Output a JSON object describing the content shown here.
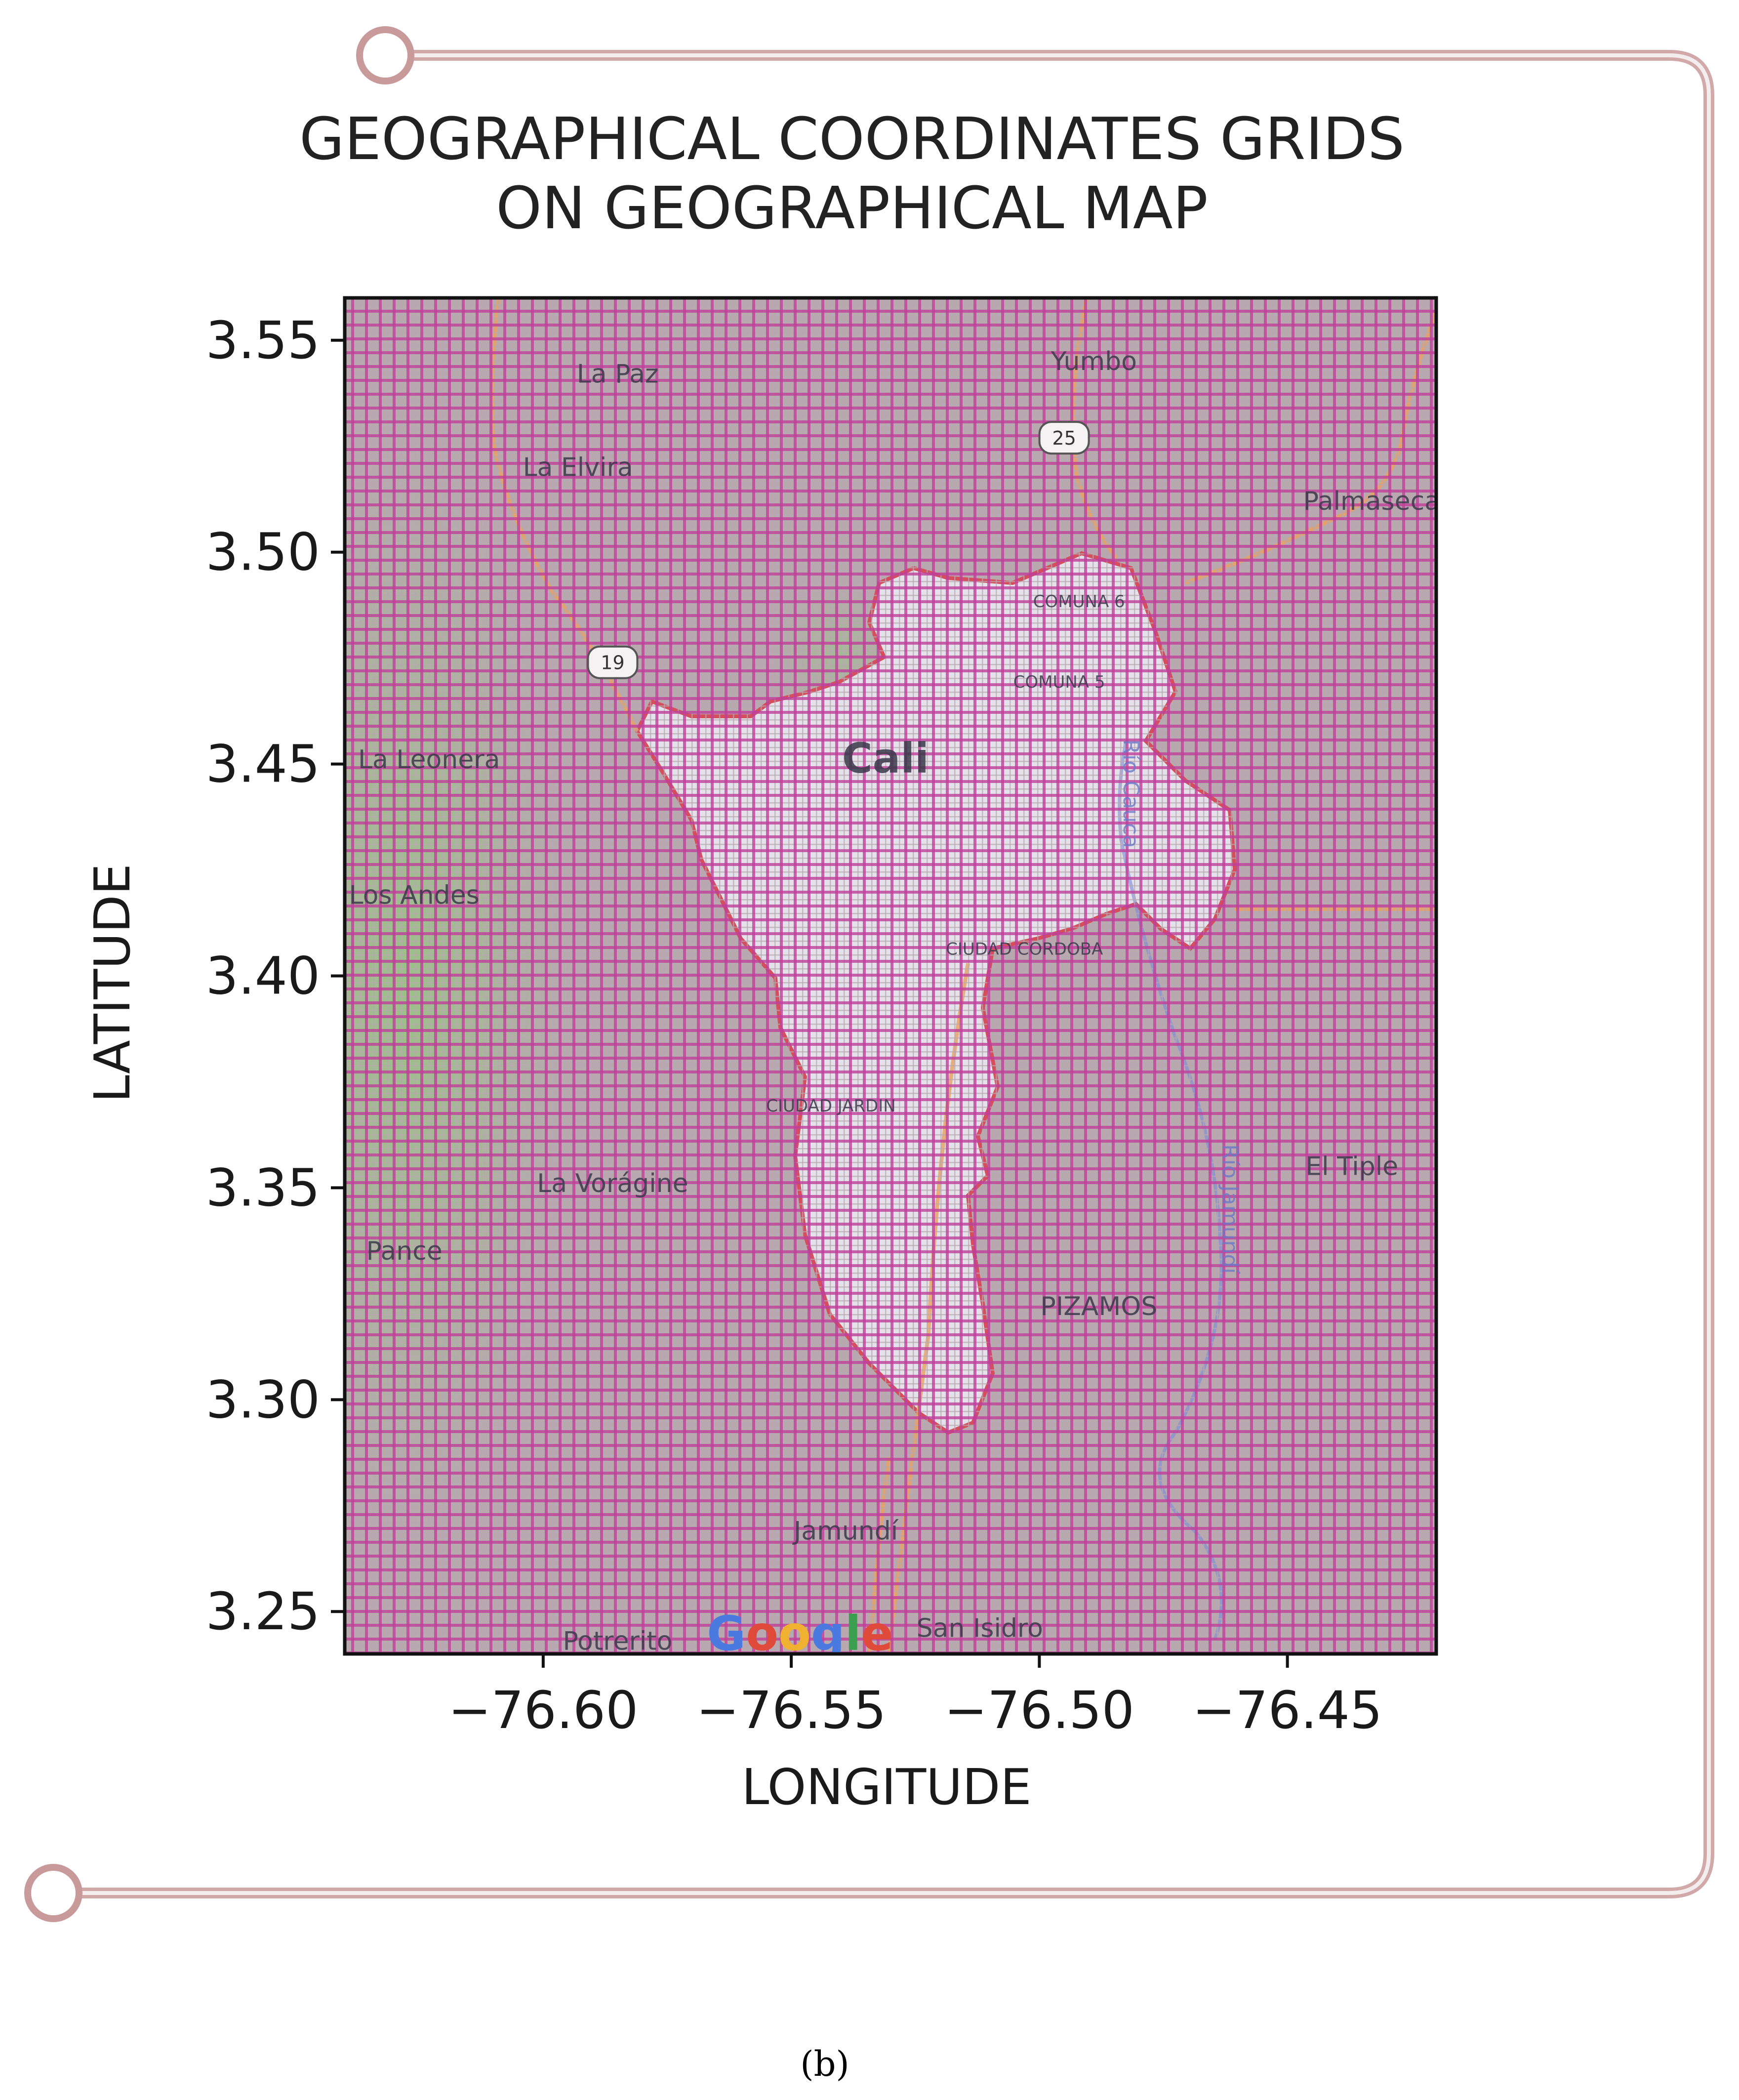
{
  "figure": {
    "title_line1": "GEOGRAPHICAL COORDINATES GRIDS",
    "title_line2": "ON GEOGRAPHICAL MAP",
    "caption": "(b)",
    "xlabel": "LONGITUDE",
    "ylabel": "LATITUDE",
    "watermark": "Google"
  },
  "chart_data": {
    "type": "map",
    "xlim": [
      -76.64,
      -76.42
    ],
    "ylim": [
      3.24,
      3.56
    ],
    "x_ticks": [
      -76.6,
      -76.55,
      -76.5,
      -76.45
    ],
    "x_tick_labels": [
      "−76.60",
      "−76.55",
      "−76.50",
      "−76.45"
    ],
    "y_ticks": [
      3.25,
      3.3,
      3.35,
      3.4,
      3.45,
      3.5,
      3.55
    ],
    "y_tick_labels": [
      "3.25",
      "3.30",
      "3.35",
      "3.40",
      "3.45",
      "3.50",
      "3.55"
    ],
    "grid": true,
    "grid_colors": [
      "#c0409a",
      "#8bb0a0"
    ],
    "map_colors": {
      "rural": "#b8a9b0",
      "urban": "#e8e4ee",
      "vegetation": "#9fc08a",
      "border": "#d84a5a",
      "road": "#e8b060"
    },
    "places": [
      {
        "name": "La Paz",
        "lon": -76.585,
        "lat": 3.54,
        "size": "small"
      },
      {
        "name": "Yumbo",
        "lon": -76.489,
        "lat": 3.543,
        "size": "small"
      },
      {
        "name": "La Elvira",
        "lon": -76.593,
        "lat": 3.518,
        "size": "small"
      },
      {
        "name": "Palmaseca",
        "lon": -76.433,
        "lat": 3.51,
        "size": "small"
      },
      {
        "name": "COMUNA 6",
        "lon": -76.492,
        "lat": 3.487,
        "size": "tiny"
      },
      {
        "name": "COMUNA 5",
        "lon": -76.496,
        "lat": 3.468,
        "size": "tiny"
      },
      {
        "name": "Cali",
        "lon": -76.531,
        "lat": 3.448,
        "size": "large"
      },
      {
        "name": "La Leonera",
        "lon": -76.623,
        "lat": 3.449,
        "size": "small"
      },
      {
        "name": "Los Andes",
        "lon": -76.626,
        "lat": 3.417,
        "size": "small"
      },
      {
        "name": "CIUDAD CORDOBA",
        "lon": -76.503,
        "lat": 3.405,
        "size": "tiny"
      },
      {
        "name": "CIUDAD JARDIN",
        "lon": -76.542,
        "lat": 3.368,
        "size": "tiny"
      },
      {
        "name": "La Vorágine",
        "lon": -76.586,
        "lat": 3.349,
        "size": "small"
      },
      {
        "name": "El Tiple",
        "lon": -76.437,
        "lat": 3.353,
        "size": "small"
      },
      {
        "name": "Pance",
        "lon": -76.628,
        "lat": 3.333,
        "size": "small"
      },
      {
        "name": "PIZAMOS",
        "lon": -76.488,
        "lat": 3.32,
        "size": "small"
      },
      {
        "name": "Jamundí",
        "lon": -76.539,
        "lat": 3.267,
        "size": "small"
      },
      {
        "name": "Potrerito",
        "lon": -76.585,
        "lat": 3.241,
        "size": "small"
      },
      {
        "name": "San Isidro",
        "lon": -76.512,
        "lat": 3.244,
        "size": "small"
      }
    ],
    "roads": [
      {
        "label": "25",
        "lon": -76.495,
        "lat": 3.527
      },
      {
        "label": "19",
        "lon": -76.586,
        "lat": 3.474
      }
    ],
    "rivers": [
      {
        "name": "Río Cauca",
        "lon": -76.483,
        "lat": 3.443
      },
      {
        "name": "Río Jamundí",
        "lon": -76.463,
        "lat": 3.345
      }
    ]
  }
}
